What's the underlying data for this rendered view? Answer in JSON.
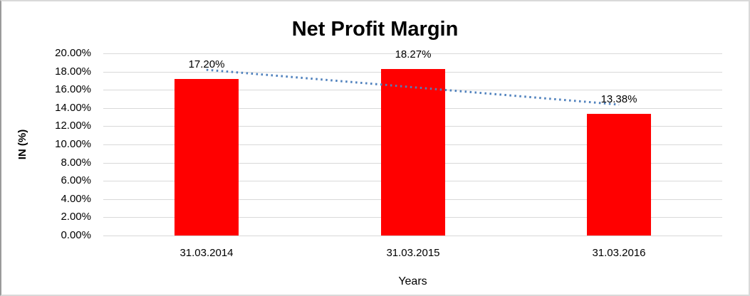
{
  "chart_data": {
    "type": "bar",
    "title": "Net Profit Margin",
    "xlabel": "Years",
    "ylabel": "IN (%)",
    "categories": [
      "31.03.2014",
      "31.03.2015",
      "31.03.2016"
    ],
    "values": [
      17.2,
      18.27,
      13.38
    ],
    "value_labels": [
      "17.20%",
      "18.27%",
      "13.38%"
    ],
    "ylim": [
      0,
      20
    ],
    "ytick_step": 2,
    "ytick_labels": [
      "0.00%",
      "2.00%",
      "4.00%",
      "6.00%",
      "8.00%",
      "10.00%",
      "12.00%",
      "14.00%",
      "16.00%",
      "18.00%",
      "20.00%"
    ],
    "grid": true,
    "legend": "none",
    "trendline": {
      "type": "linear",
      "style": "dotted"
    },
    "colors": {
      "bar": "#FF0000",
      "gridline": "#D9D9D9",
      "trendline": "#4F81BD",
      "text": "#000000",
      "background": "#FFFFFF"
    }
  }
}
